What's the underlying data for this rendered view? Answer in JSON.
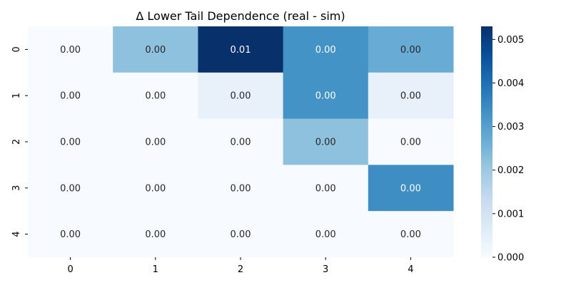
{
  "chart_data": {
    "type": "heatmap",
    "title": "Δ Lower Tail Dependence (real - sim)",
    "x_categories": [
      "0",
      "1",
      "2",
      "3",
      "4"
    ],
    "y_categories": [
      "0",
      "1",
      "2",
      "3",
      "4"
    ],
    "values": [
      [
        0.0,
        0.0022,
        0.0053,
        0.0033,
        0.0027
      ],
      [
        0.0,
        0.0,
        0.0004,
        0.0033,
        0.0004
      ],
      [
        0.0,
        0.0,
        0.0,
        0.0022,
        0.0
      ],
      [
        0.0,
        0.0,
        0.0,
        0.0,
        0.0034
      ],
      [
        0.0,
        0.0,
        0.0,
        0.0,
        0.0
      ]
    ],
    "annotations": [
      [
        "0.00",
        "0.00",
        "0.01",
        "0.00",
        "0.00"
      ],
      [
        "0.00",
        "0.00",
        "0.00",
        "0.00",
        "0.00"
      ],
      [
        "0.00",
        "0.00",
        "0.00",
        "0.00",
        "0.00"
      ],
      [
        "0.00",
        "0.00",
        "0.00",
        "0.00",
        "0.00"
      ],
      [
        "0.00",
        "0.00",
        "0.00",
        "0.00",
        "0.00"
      ]
    ],
    "colormap": "Blues",
    "colorbar": {
      "min": 0.0,
      "max": 0.0053,
      "ticks": [
        0.0,
        0.001,
        0.002,
        0.003,
        0.004,
        0.005
      ],
      "tick_labels": [
        "0.000",
        "0.001",
        "0.002",
        "0.003",
        "0.004",
        "0.005"
      ]
    },
    "grid": false
  }
}
